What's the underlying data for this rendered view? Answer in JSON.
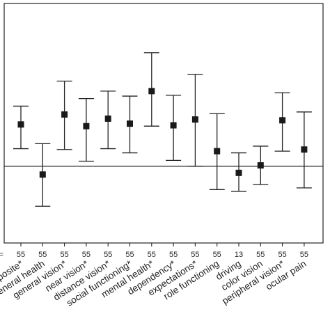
{
  "chart_data": {
    "type": "scatter",
    "style": "error-bar",
    "n_label": "N =",
    "categories": [
      "composite*",
      "general health",
      "general vision*",
      "near vision*",
      "distance vision*",
      "social functioning*",
      "mental health*",
      "dependency*",
      "expectations*",
      "role functioning",
      "driving",
      "color vision",
      "peripheral vision*",
      "ocular pain"
    ],
    "n": [
      "55",
      "55",
      "55",
      "55",
      "55",
      "55",
      "55",
      "55",
      "55",
      "55",
      "13",
      "55",
      "55",
      "55"
    ],
    "series": [
      {
        "mean": [
          0.5,
          -0.1,
          0.62,
          0.48,
          0.57,
          0.51,
          0.9,
          0.49,
          0.56,
          0.18,
          -0.08,
          0.01,
          0.55,
          0.2
        ],
        "lower": [
          0.21,
          -0.48,
          0.2,
          0.06,
          0.21,
          0.16,
          0.48,
          0.07,
          0.0,
          -0.28,
          -0.3,
          -0.22,
          0.18,
          -0.26
        ],
        "upper": [
          0.72,
          0.27,
          1.02,
          0.81,
          0.9,
          0.84,
          1.36,
          0.85,
          1.1,
          0.63,
          0.16,
          0.24,
          0.88,
          0.65
        ]
      }
    ],
    "reference_line": 0,
    "ylim": [
      -0.92,
      1.95
    ],
    "grid": false
  }
}
